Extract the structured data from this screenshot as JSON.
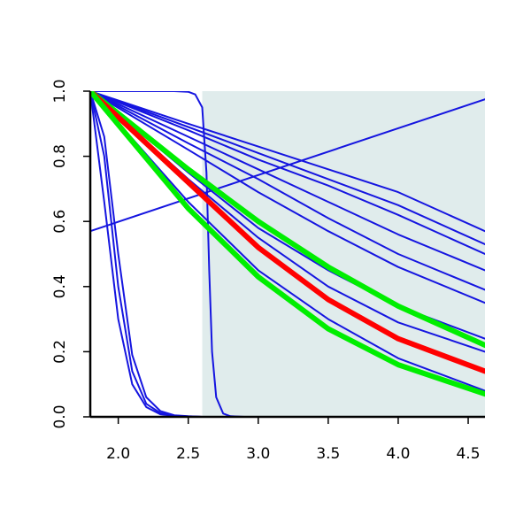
{
  "chart_data": {
    "type": "line",
    "title": "",
    "xlabel": "",
    "ylabel": "",
    "xlim": [
      1.8,
      4.62
    ],
    "ylim": [
      0.0,
      1.0
    ],
    "grid": false,
    "legend": "none",
    "x_ticks": [
      2.0,
      2.5,
      3.0,
      3.5,
      4.0,
      4.5
    ],
    "x_tick_labels": [
      "2.0",
      "2.5",
      "3.0",
      "3.5",
      "4.0",
      "4.5"
    ],
    "y_ticks": [
      0.0,
      0.2,
      0.4,
      0.6,
      0.8,
      1.0
    ],
    "y_tick_labels": [
      "0.0",
      "0.2",
      "0.4",
      "0.6",
      "0.8",
      "1.0"
    ],
    "shaded_region": {
      "x_from": 2.6,
      "x_to": 4.62,
      "color": "#e0ecec"
    },
    "colors": {
      "blue": "#1515e0",
      "red": "#ff0000",
      "green": "#00ee00",
      "axis": "#000000"
    },
    "series": [
      {
        "color": "blue",
        "width": "thin",
        "x": [
          1.8,
          1.9,
          2.0,
          2.1,
          2.2,
          2.3,
          2.4,
          2.5,
          2.6,
          2.7,
          4.62
        ],
        "y": [
          1.0,
          0.66,
          0.3,
          0.1,
          0.03,
          0.008,
          0.003,
          0.001,
          0.0,
          0.0,
          0.0
        ]
      },
      {
        "color": "blue",
        "width": "thin",
        "x": [
          1.8,
          1.9,
          2.0,
          2.1,
          2.2,
          2.3,
          2.4,
          2.5,
          2.6,
          2.7,
          4.62
        ],
        "y": [
          1.0,
          0.8,
          0.4,
          0.14,
          0.04,
          0.012,
          0.004,
          0.001,
          0.0,
          0.0,
          0.0
        ]
      },
      {
        "color": "blue",
        "width": "thin",
        "x": [
          1.8,
          1.9,
          2.0,
          2.1,
          2.2,
          2.3,
          2.4,
          2.5,
          2.6,
          2.7,
          4.62
        ],
        "y": [
          1.0,
          0.86,
          0.5,
          0.19,
          0.06,
          0.018,
          0.005,
          0.002,
          0.0,
          0.0,
          0.0
        ]
      },
      {
        "color": "blue",
        "width": "thin",
        "x": [
          1.8,
          2.4,
          2.5,
          2.55,
          2.6,
          2.63,
          2.65,
          2.67,
          2.7,
          2.75,
          2.8,
          2.9,
          4.62
        ],
        "y": [
          1.0,
          1.0,
          0.998,
          0.99,
          0.95,
          0.75,
          0.45,
          0.2,
          0.06,
          0.01,
          0.002,
          0.0,
          0.0
        ]
      },
      {
        "color": "blue",
        "width": "thin",
        "x": [
          1.8,
          4.62
        ],
        "y": [
          0.57,
          0.975
        ]
      },
      {
        "color": "blue",
        "width": "thin",
        "x": [
          1.8,
          2.5,
          3.0,
          3.5,
          4.0,
          4.62
        ],
        "y": [
          1.0,
          0.9,
          0.83,
          0.76,
          0.69,
          0.57
        ]
      },
      {
        "color": "blue",
        "width": "thin",
        "x": [
          1.8,
          2.5,
          3.0,
          3.5,
          4.0,
          4.62
        ],
        "y": [
          1.0,
          0.89,
          0.81,
          0.73,
          0.65,
          0.53
        ]
      },
      {
        "color": "blue",
        "width": "thin",
        "x": [
          1.8,
          2.5,
          3.0,
          3.5,
          4.0,
          4.62
        ],
        "y": [
          1.0,
          0.88,
          0.79,
          0.71,
          0.62,
          0.5
        ]
      },
      {
        "color": "blue",
        "width": "thin",
        "x": [
          1.8,
          2.5,
          3.0,
          3.5,
          4.0,
          4.62
        ],
        "y": [
          1.0,
          0.86,
          0.76,
          0.66,
          0.56,
          0.45
        ]
      },
      {
        "color": "blue",
        "width": "thin",
        "x": [
          1.8,
          2.5,
          3.0,
          3.5,
          4.0,
          4.62
        ],
        "y": [
          1.0,
          0.84,
          0.73,
          0.61,
          0.5,
          0.39
        ]
      },
      {
        "color": "blue",
        "width": "thin",
        "x": [
          1.8,
          2.5,
          3.0,
          3.5,
          4.0,
          4.62
        ],
        "y": [
          1.0,
          0.82,
          0.69,
          0.57,
          0.46,
          0.35
        ]
      },
      {
        "color": "blue",
        "width": "thin",
        "x": [
          1.8,
          2.5,
          3.0,
          3.5,
          4.0,
          4.62
        ],
        "y": [
          1.0,
          0.75,
          0.58,
          0.45,
          0.34,
          0.24
        ]
      },
      {
        "color": "blue",
        "width": "thin",
        "x": [
          1.8,
          2.5,
          3.0,
          3.5,
          4.0,
          4.62
        ],
        "y": [
          1.0,
          0.73,
          0.55,
          0.4,
          0.29,
          0.2
        ]
      },
      {
        "color": "blue",
        "width": "thin",
        "x": [
          1.8,
          2.5,
          3.0,
          3.5,
          4.0,
          4.62
        ],
        "y": [
          1.0,
          0.66,
          0.45,
          0.3,
          0.18,
          0.08
        ]
      },
      {
        "color": "green",
        "width": "thick",
        "x": [
          1.8,
          2.5,
          3.0,
          3.5,
          4.0,
          4.62
        ],
        "y": [
          1.0,
          0.76,
          0.6,
          0.46,
          0.34,
          0.22
        ]
      },
      {
        "color": "red",
        "width": "thick",
        "x": [
          1.8,
          2.5,
          3.0,
          3.5,
          4.0,
          4.62
        ],
        "y": [
          1.0,
          0.72,
          0.52,
          0.36,
          0.24,
          0.14
        ]
      },
      {
        "color": "green",
        "width": "thick",
        "x": [
          1.8,
          2.5,
          3.0,
          3.5,
          4.0,
          4.62
        ],
        "y": [
          1.0,
          0.64,
          0.43,
          0.27,
          0.16,
          0.07
        ]
      }
    ]
  }
}
